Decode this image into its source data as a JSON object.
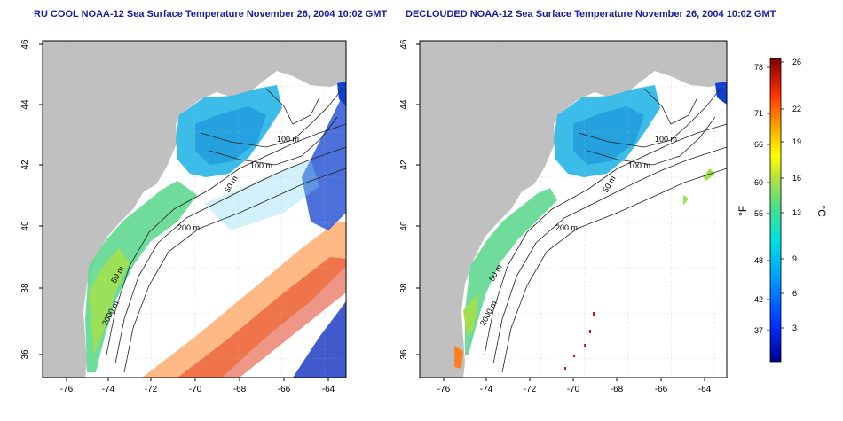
{
  "panels": [
    {
      "title": "RU COOL NOAA-12 Sea Surface Temperature November 26, 2004 10:02 GMT",
      "contour_labels": [
        "100 m",
        "100 m",
        "50 m",
        "200 m",
        "50 m",
        "2000 m"
      ]
    },
    {
      "title": "DECLOUDED NOAA-12 Sea Surface Temperature November 26, 2004 10:02 GMT",
      "contour_labels": [
        "100 m",
        "100 m",
        "50 m",
        "200 m",
        "50 m",
        "2000 m"
      ]
    }
  ],
  "axes": {
    "x_ticks": [
      "-76",
      "-74",
      "-72",
      "-70",
      "-68",
      "-66",
      "-64"
    ],
    "y_ticks": [
      "36",
      "38",
      "40",
      "42",
      "44",
      "46"
    ]
  },
  "colorbar": {
    "fahrenheit_label": "°F",
    "celsius_label": "°C",
    "fahrenheit_ticks": [
      "78",
      "71",
      "66",
      "60",
      "55",
      "48",
      "42",
      "37"
    ],
    "celsius_ticks": [
      "26",
      "22",
      "19",
      "16",
      "13",
      "9",
      "6",
      "3"
    ],
    "range_c": [
      0,
      26
    ],
    "colors": [
      "#0000a0",
      "#0040ff",
      "#00a0ff",
      "#00e0e0",
      "#40e080",
      "#a0e040",
      "#ffff00",
      "#ffa000",
      "#ff4000",
      "#c00000",
      "#800000"
    ]
  },
  "colors": {
    "land": "#c0c0c0",
    "title": "#1a1aa0",
    "cold": "#1040d0",
    "cyan": "#30c0e8",
    "green": "#70e070",
    "warm": "#ff6010",
    "hot": "#c01010"
  }
}
